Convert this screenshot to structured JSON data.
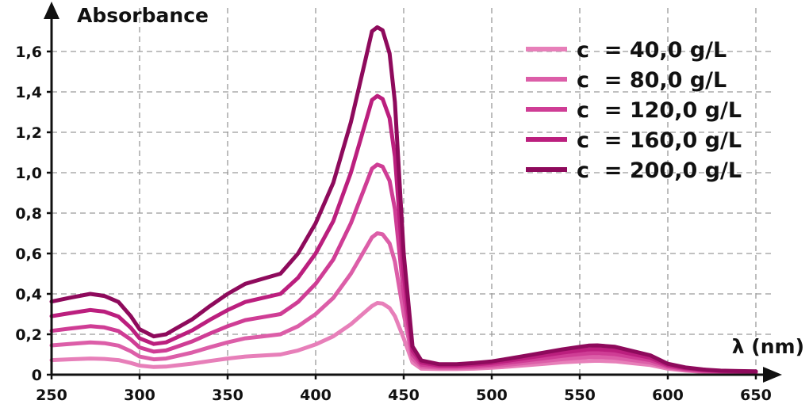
{
  "chart_data": {
    "type": "line",
    "xlabel": "λ (nm)",
    "ylabel": "Absorbance",
    "xlim": [
      250,
      650
    ],
    "ylim": [
      0,
      1.7
    ],
    "xticks": [
      250,
      300,
      350,
      400,
      450,
      500,
      550,
      600,
      650
    ],
    "yticks": [
      0,
      0.2,
      0.4,
      0.6,
      0.8,
      1.0,
      1.2,
      1.4,
      1.6
    ],
    "xtick_labels": [
      "250",
      "300",
      "350",
      "400",
      "450",
      "500",
      "550",
      "600",
      "650"
    ],
    "ytick_labels": [
      "0",
      "0,2",
      "0,4",
      "0,6",
      "0,8",
      "1,0",
      "1,2",
      "1,4",
      "1,6"
    ],
    "grid": true,
    "legend_position": "top-right",
    "x": [
      250,
      260,
      272,
      280,
      288,
      295,
      300,
      308,
      315,
      320,
      330,
      340,
      350,
      360,
      370,
      380,
      385,
      390,
      400,
      410,
      420,
      428,
      432,
      435,
      438,
      442,
      445,
      450,
      455,
      460,
      470,
      480,
      490,
      500,
      510,
      520,
      530,
      540,
      550,
      555,
      560,
      570,
      580,
      590,
      600,
      610,
      620,
      630,
      640,
      650
    ],
    "series": [
      {
        "name": "c  = 40,0 g/L",
        "color": "#e77fb9",
        "values": [
          0.072,
          0.076,
          0.08,
          0.078,
          0.072,
          0.058,
          0.045,
          0.038,
          0.04,
          0.045,
          0.055,
          0.068,
          0.08,
          0.09,
          0.095,
          0.1,
          0.11,
          0.12,
          0.15,
          0.19,
          0.25,
          0.31,
          0.34,
          0.355,
          0.352,
          0.33,
          0.29,
          0.18,
          0.06,
          0.03,
          0.028,
          0.028,
          0.03,
          0.034,
          0.04,
          0.047,
          0.054,
          0.061,
          0.066,
          0.068,
          0.069,
          0.066,
          0.057,
          0.048,
          0.03,
          0.02,
          0.014,
          0.012,
          0.01,
          0.009
        ]
      },
      {
        "name": "c  = 80,0 g/L",
        "color": "#dc5ea8",
        "values": [
          0.145,
          0.152,
          0.16,
          0.156,
          0.144,
          0.116,
          0.09,
          0.076,
          0.08,
          0.09,
          0.11,
          0.136,
          0.16,
          0.18,
          0.19,
          0.2,
          0.22,
          0.24,
          0.3,
          0.38,
          0.5,
          0.62,
          0.68,
          0.7,
          0.695,
          0.65,
          0.56,
          0.3,
          0.08,
          0.04,
          0.034,
          0.034,
          0.037,
          0.042,
          0.05,
          0.059,
          0.068,
          0.077,
          0.084,
          0.087,
          0.088,
          0.084,
          0.072,
          0.06,
          0.036,
          0.024,
          0.017,
          0.014,
          0.012,
          0.011
        ]
      },
      {
        "name": "c  = 120,0 g/L",
        "color": "#cf3d95",
        "values": [
          0.217,
          0.228,
          0.24,
          0.234,
          0.216,
          0.174,
          0.135,
          0.114,
          0.12,
          0.135,
          0.165,
          0.204,
          0.24,
          0.27,
          0.285,
          0.3,
          0.33,
          0.36,
          0.45,
          0.57,
          0.75,
          0.93,
          1.02,
          1.04,
          1.03,
          0.96,
          0.82,
          0.4,
          0.1,
          0.05,
          0.04,
          0.04,
          0.044,
          0.05,
          0.06,
          0.071,
          0.082,
          0.093,
          0.102,
          0.106,
          0.107,
          0.102,
          0.087,
          0.072,
          0.042,
          0.028,
          0.02,
          0.016,
          0.014,
          0.013
        ]
      },
      {
        "name": "c  = 160,0 g/L",
        "color": "#bb1f7e",
        "values": [
          0.29,
          0.304,
          0.32,
          0.312,
          0.288,
          0.232,
          0.18,
          0.152,
          0.16,
          0.18,
          0.22,
          0.272,
          0.32,
          0.36,
          0.38,
          0.4,
          0.44,
          0.48,
          0.6,
          0.76,
          1.0,
          1.24,
          1.36,
          1.38,
          1.365,
          1.27,
          1.08,
          0.5,
          0.12,
          0.06,
          0.046,
          0.046,
          0.051,
          0.058,
          0.07,
          0.083,
          0.096,
          0.109,
          0.12,
          0.125,
          0.126,
          0.12,
          0.102,
          0.084,
          0.048,
          0.032,
          0.023,
          0.018,
          0.016,
          0.015
        ]
      },
      {
        "name": "c  = 200,0 g/L",
        "color": "#8e0a5c",
        "values": [
          0.362,
          0.38,
          0.4,
          0.39,
          0.36,
          0.29,
          0.225,
          0.19,
          0.2,
          0.225,
          0.275,
          0.34,
          0.4,
          0.45,
          0.475,
          0.5,
          0.55,
          0.6,
          0.75,
          0.95,
          1.25,
          1.55,
          1.7,
          1.72,
          1.705,
          1.59,
          1.35,
          0.6,
          0.14,
          0.07,
          0.052,
          0.052,
          0.058,
          0.066,
          0.08,
          0.095,
          0.11,
          0.125,
          0.138,
          0.144,
          0.145,
          0.138,
          0.117,
          0.096,
          0.054,
          0.036,
          0.026,
          0.02,
          0.018,
          0.017
        ]
      }
    ]
  }
}
